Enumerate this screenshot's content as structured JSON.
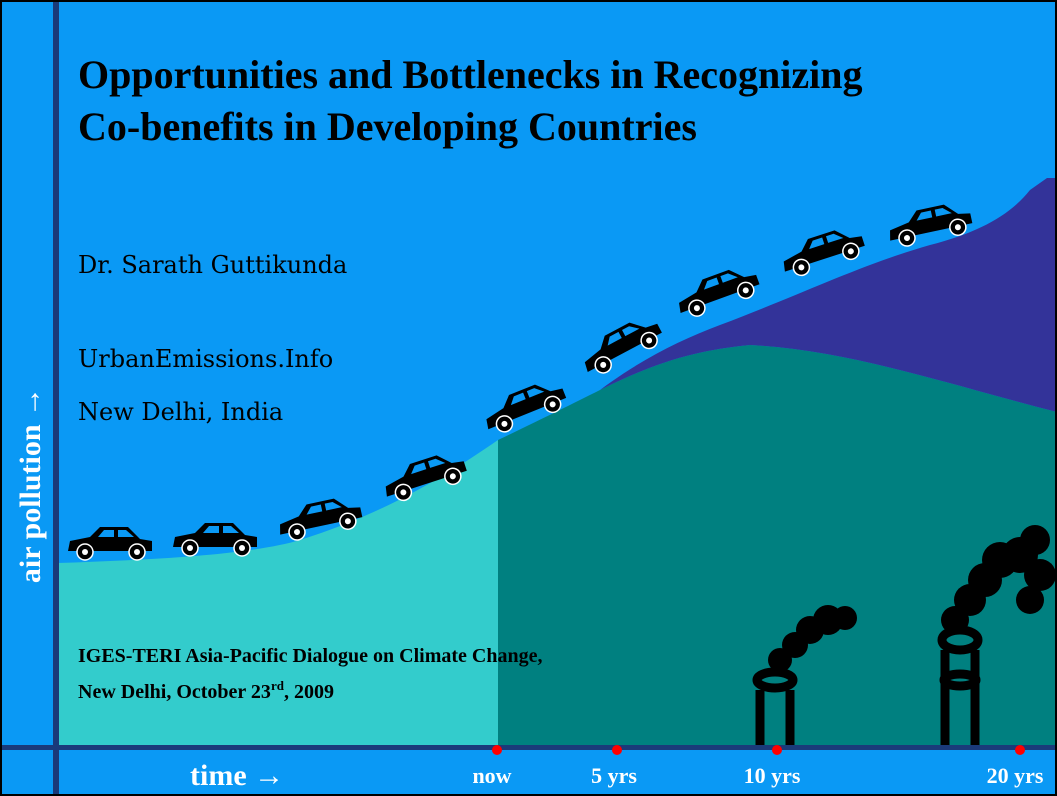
{
  "slide": {
    "title": [
      "Opportunities and Bottlenecks in Recognizing",
      "Co-benefits in Developing Countries"
    ],
    "author": "Dr. Sarath Guttikunda",
    "organization": "UrbanEmissions.Info",
    "location": "New Delhi, India",
    "event": {
      "line1": "IGES-TERI Asia-Pacific Dialogue on Climate Change,",
      "line2_main": "New Delhi, October 23",
      "line2_sup": "rd",
      "line2_end": ", 2009"
    },
    "y_axis_label": "air pollution →",
    "x_axis_label": "time →",
    "time_labels": [
      "now",
      "5 yrs",
      "10 yrs",
      "20 yrs"
    ]
  }
}
